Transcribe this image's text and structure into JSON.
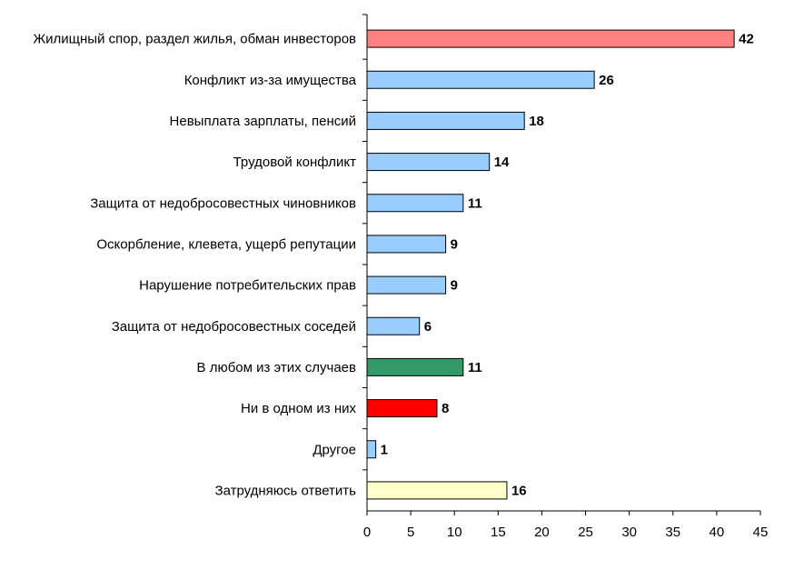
{
  "chart_data": {
    "type": "bar",
    "orientation": "horizontal",
    "categories": [
      "Жилищный спор, раздел жилья, обман инвесторов",
      "Конфликт из-за имущества",
      "Невыплата зарплаты, пенсий",
      "Трудовой конфликт",
      "Защита от недобросовестных чиновников",
      "Оскорбление, клевета, ущерб репутации",
      "Нарушение потребительских прав",
      "Защита от недобросовестных соседей",
      "В любом из этих случаев",
      "Ни в одном из них",
      "Другое",
      "Затрудняюсь ответить"
    ],
    "values": [
      42,
      26,
      18,
      14,
      11,
      9,
      9,
      6,
      11,
      8,
      1,
      16
    ],
    "bar_colors": [
      "#ff8080",
      "#99ccff",
      "#99ccff",
      "#99ccff",
      "#99ccff",
      "#99ccff",
      "#99ccff",
      "#99ccff",
      "#339966",
      "#ff0000",
      "#99ccff",
      "#ffffcc"
    ],
    "xlim": [
      0,
      45
    ],
    "xticks": [
      "0",
      "5",
      "10",
      "15",
      "20",
      "25",
      "30",
      "35",
      "40",
      "45"
    ],
    "data_labels": [
      "42",
      "26",
      "18",
      "14",
      "11",
      "9",
      "9",
      "6",
      "11",
      "8",
      "1",
      "16"
    ],
    "title": "",
    "xlabel": "",
    "ylabel": "",
    "grid": false,
    "legend": "none"
  }
}
